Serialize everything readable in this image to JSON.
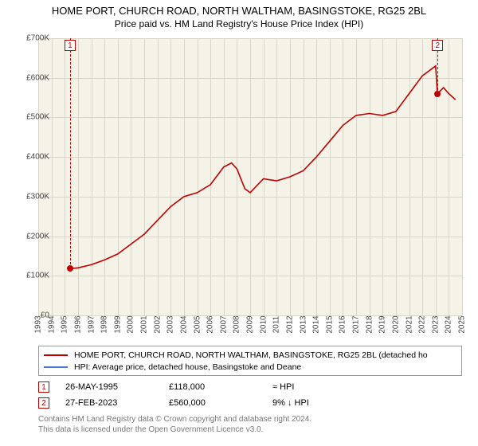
{
  "title": "HOME PORT, CHURCH ROAD, NORTH WALTHAM, BASINGSTOKE, RG25 2BL",
  "subtitle": "Price paid vs. HM Land Registry's House Price Index (HPI)",
  "chart": {
    "type": "line",
    "background_color": "#f5f3e7",
    "grid_color": "#d8d6c8",
    "xlim": [
      1993,
      2025
    ],
    "ylim": [
      0,
      700
    ],
    "ytick_step": 100,
    "yticks": [
      0,
      100,
      200,
      300,
      400,
      500,
      600,
      700
    ],
    "ylabel_prefix": "£",
    "ylabel_suffix": "K",
    "ylabel_zero": "£0",
    "xticks": [
      1993,
      1994,
      1995,
      1996,
      1997,
      1998,
      1999,
      2000,
      2001,
      2002,
      2003,
      2004,
      2005,
      2006,
      2007,
      2008,
      2009,
      2010,
      2011,
      2012,
      2013,
      2014,
      2015,
      2016,
      2017,
      2018,
      2019,
      2020,
      2021,
      2022,
      2023,
      2024,
      2025
    ],
    "series": [
      {
        "name": "price_paid",
        "color": "#c00000",
        "line_width": 1.6,
        "points": [
          [
            1995.4,
            118
          ],
          [
            1996,
            120
          ],
          [
            1997,
            128
          ],
          [
            1998,
            140
          ],
          [
            1999,
            155
          ],
          [
            2000,
            180
          ],
          [
            2001,
            205
          ],
          [
            2002,
            240
          ],
          [
            2003,
            275
          ],
          [
            2004,
            300
          ],
          [
            2005,
            310
          ],
          [
            2006,
            330
          ],
          [
            2007,
            375
          ],
          [
            2007.6,
            385
          ],
          [
            2008,
            370
          ],
          [
            2008.6,
            320
          ],
          [
            2009,
            310
          ],
          [
            2010,
            345
          ],
          [
            2011,
            340
          ],
          [
            2012,
            350
          ],
          [
            2013,
            365
          ],
          [
            2014,
            400
          ],
          [
            2015,
            440
          ],
          [
            2016,
            480
          ],
          [
            2017,
            505
          ],
          [
            2018,
            510
          ],
          [
            2019,
            505
          ],
          [
            2020,
            515
          ],
          [
            2021,
            560
          ],
          [
            2022,
            605
          ],
          [
            2023,
            630
          ],
          [
            2023.15,
            560
          ],
          [
            2023.6,
            575
          ],
          [
            2024,
            560
          ],
          [
            2024.5,
            545
          ]
        ]
      },
      {
        "name": "hpi",
        "color": "#4a7bd0",
        "line_width": 1.0,
        "points": []
      }
    ],
    "markers": [
      {
        "id": "1",
        "x": 1995.4,
        "y": 118
      },
      {
        "id": "2",
        "x": 2023.15,
        "y": 560
      }
    ],
    "marker_border_color": "#c00000"
  },
  "legend": {
    "items": [
      {
        "color": "#c00000",
        "label": "HOME PORT, CHURCH ROAD, NORTH WALTHAM, BASINGSTOKE, RG25 2BL (detached ho"
      },
      {
        "color": "#4a7bd0",
        "label": "HPI: Average price, detached house, Basingstoke and Deane"
      }
    ]
  },
  "transactions": [
    {
      "id": "1",
      "date": "26-MAY-1995",
      "price": "£118,000",
      "hpi": "≈ HPI"
    },
    {
      "id": "2",
      "date": "27-FEB-2023",
      "price": "£560,000",
      "hpi": "9% ↓ HPI"
    }
  ],
  "footer_line1": "Contains HM Land Registry data © Crown copyright and database right 2024.",
  "footer_line2": "This data is licensed under the Open Government Licence v3.0."
}
